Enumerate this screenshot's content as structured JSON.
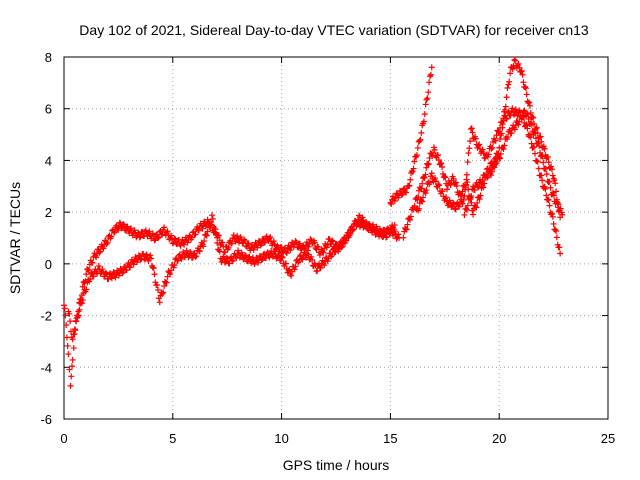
{
  "chart_data": {
    "type": "scatter",
    "title": "Day 102 of 2021, Sidereal Day-to-day VTEC variation (SDTVAR) for receiver cn13",
    "xlabel": "GPS time / hours",
    "ylabel": "SDTVAR / TECUs",
    "xlim": [
      0,
      25
    ],
    "ylim": [
      -6,
      8
    ],
    "xticks": [
      0,
      5,
      10,
      15,
      20,
      25
    ],
    "yticks": [
      -6,
      -4,
      -2,
      0,
      2,
      4,
      6,
      8
    ],
    "grid": true,
    "marker": "+",
    "colors": {
      "series": "#ff0000",
      "grid": "#a0a0a0",
      "axis": "#000000"
    },
    "series": [
      {
        "points": [
          [
            0.0,
            -1.6
          ],
          [
            0.1,
            -2.3
          ],
          [
            0.2,
            -3.6
          ],
          [
            0.3,
            -4.6
          ],
          [
            0.4,
            -3.8
          ],
          [
            0.5,
            -2.5
          ],
          [
            0.7,
            -1.6
          ],
          [
            0.9,
            -0.8
          ],
          [
            1.1,
            -0.2
          ],
          [
            1.4,
            0.3
          ],
          [
            1.7,
            0.6
          ],
          [
            2.0,
            0.9
          ],
          [
            2.3,
            1.3
          ],
          [
            2.6,
            1.5
          ],
          [
            3.0,
            1.3
          ],
          [
            3.4,
            1.1
          ],
          [
            3.8,
            1.2
          ],
          [
            4.2,
            1.0
          ],
          [
            4.6,
            1.3
          ],
          [
            5.0,
            0.9
          ],
          [
            5.4,
            0.8
          ],
          [
            5.8,
            1.0
          ],
          [
            6.2,
            1.4
          ],
          [
            6.6,
            1.6
          ],
          [
            7.0,
            1.2
          ],
          [
            7.4,
            0.5
          ],
          [
            7.8,
            1.0
          ],
          [
            8.2,
            0.9
          ],
          [
            8.6,
            0.6
          ],
          [
            9.0,
            0.8
          ],
          [
            9.4,
            1.0
          ],
          [
            9.8,
            0.6
          ],
          [
            10.2,
            0.5
          ],
          [
            10.6,
            0.8
          ],
          [
            11.0,
            0.6
          ],
          [
            11.4,
            0.9
          ],
          [
            11.8,
            0.4
          ],
          [
            12.2,
            0.9
          ],
          [
            12.6,
            0.6
          ],
          [
            13.0,
            1.0
          ],
          [
            13.4,
            1.6
          ],
          [
            13.8,
            1.5
          ],
          [
            14.2,
            1.4
          ],
          [
            14.6,
            1.2
          ],
          [
            15.0,
            1.3
          ],
          [
            15.4,
            1.0
          ]
        ]
      },
      {
        "points": [
          [
            0.2,
            -1.8
          ],
          [
            0.4,
            -3.0
          ],
          [
            0.6,
            -2.1
          ],
          [
            0.9,
            -1.2
          ],
          [
            1.2,
            -0.5
          ],
          [
            1.6,
            -0.2
          ],
          [
            2.0,
            -0.5
          ],
          [
            2.4,
            -0.4
          ],
          [
            2.8,
            -0.2
          ],
          [
            3.2,
            0.1
          ],
          [
            3.6,
            0.3
          ],
          [
            4.0,
            0.2
          ],
          [
            4.4,
            -1.4
          ],
          [
            4.8,
            -0.4
          ],
          [
            5.2,
            0.2
          ],
          [
            5.6,
            0.4
          ],
          [
            6.0,
            0.3
          ],
          [
            6.4,
            0.8
          ],
          [
            6.8,
            1.8
          ],
          [
            7.2,
            0.2
          ],
          [
            7.6,
            0.1
          ],
          [
            8.0,
            0.4
          ],
          [
            8.4,
            0.2
          ],
          [
            8.8,
            0.1
          ],
          [
            9.2,
            0.3
          ],
          [
            9.6,
            0.4
          ],
          [
            10.0,
            0.2
          ],
          [
            10.4,
            -0.4
          ],
          [
            10.8,
            0.2
          ],
          [
            11.2,
            0.4
          ],
          [
            11.6,
            -0.2
          ],
          [
            12.0,
            0.1
          ],
          [
            12.4,
            0.5
          ],
          [
            12.8,
            0.8
          ],
          [
            13.2,
            1.3
          ],
          [
            13.6,
            1.8
          ],
          [
            14.0,
            1.4
          ],
          [
            14.4,
            1.2
          ],
          [
            14.8,
            1.1
          ],
          [
            15.2,
            1.5
          ]
        ]
      },
      {
        "points": [
          [
            15.0,
            2.4
          ],
          [
            15.4,
            2.7
          ],
          [
            15.8,
            2.9
          ],
          [
            16.1,
            3.9
          ],
          [
            16.3,
            4.6
          ],
          [
            16.5,
            5.4
          ],
          [
            16.7,
            6.5
          ],
          [
            16.9,
            7.6
          ]
        ]
      },
      {
        "points": [
          [
            15.6,
            1.1
          ],
          [
            15.9,
            1.8
          ],
          [
            16.2,
            2.5
          ],
          [
            16.5,
            3.2
          ],
          [
            16.8,
            4.1
          ],
          [
            17.0,
            4.4
          ],
          [
            17.3,
            3.9
          ],
          [
            17.6,
            3.0
          ],
          [
            17.9,
            3.3
          ],
          [
            18.2,
            2.6
          ],
          [
            18.5,
            3.2
          ],
          [
            18.8,
            2.0
          ],
          [
            19.1,
            2.6
          ],
          [
            19.4,
            3.4
          ],
          [
            19.7,
            3.6
          ],
          [
            20.0,
            4.5
          ],
          [
            20.3,
            6.2
          ],
          [
            20.5,
            7.4
          ],
          [
            20.7,
            7.8
          ],
          [
            21.0,
            7.5
          ],
          [
            21.3,
            6.4
          ],
          [
            21.6,
            5.4
          ],
          [
            21.9,
            4.8
          ],
          [
            22.2,
            4.1
          ],
          [
            22.5,
            3.4
          ],
          [
            22.8,
            1.8
          ]
        ]
      },
      {
        "points": [
          [
            16.2,
            2.0
          ],
          [
            16.5,
            2.6
          ],
          [
            16.9,
            3.4
          ],
          [
            17.2,
            3.0
          ],
          [
            17.6,
            2.4
          ],
          [
            18.0,
            2.2
          ],
          [
            18.4,
            2.5
          ],
          [
            18.7,
            5.2
          ],
          [
            19.0,
            4.6
          ],
          [
            19.4,
            4.1
          ],
          [
            19.8,
            4.8
          ],
          [
            20.2,
            5.6
          ],
          [
            20.6,
            5.9
          ],
          [
            21.0,
            5.8
          ],
          [
            21.3,
            5.2
          ],
          [
            21.6,
            4.4
          ],
          [
            21.9,
            3.4
          ],
          [
            22.2,
            2.6
          ],
          [
            22.5,
            1.6
          ],
          [
            22.8,
            0.4
          ]
        ]
      },
      {
        "points": [
          [
            18.4,
            1.9
          ],
          [
            18.8,
            2.9
          ],
          [
            19.2,
            3.2
          ],
          [
            19.6,
            3.8
          ],
          [
            20.0,
            4.1
          ],
          [
            20.4,
            5.0
          ],
          [
            20.8,
            5.4
          ],
          [
            21.2,
            5.9
          ],
          [
            21.5,
            5.3
          ],
          [
            21.8,
            4.6
          ],
          [
            22.1,
            3.7
          ],
          [
            22.4,
            2.8
          ],
          [
            22.7,
            2.2
          ],
          [
            22.9,
            1.9
          ]
        ]
      }
    ]
  }
}
